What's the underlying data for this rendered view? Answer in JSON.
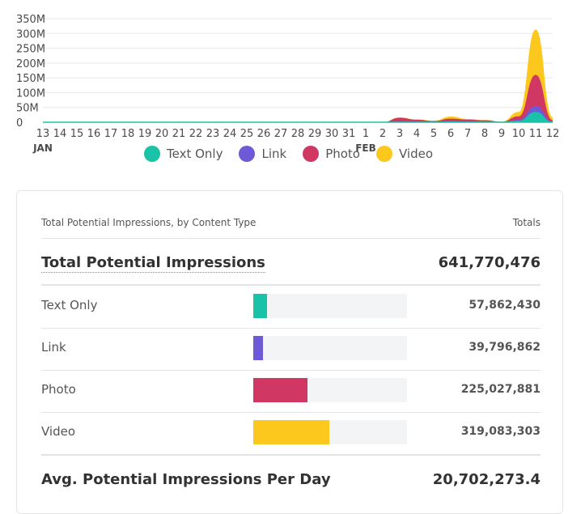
{
  "chart_data": {
    "type": "area",
    "title": "",
    "xlabel": "",
    "ylabel": "",
    "ylim": [
      0,
      350000000
    ],
    "y_ticks": [
      "0",
      "50M",
      "100M",
      "150M",
      "200M",
      "250M",
      "300M",
      "350M"
    ],
    "y_tick_values": [
      0,
      50000000,
      100000000,
      150000000,
      200000000,
      250000000,
      300000000,
      350000000
    ],
    "x": [
      "13",
      "14",
      "15",
      "16",
      "17",
      "18",
      "19",
      "20",
      "21",
      "22",
      "23",
      "24",
      "25",
      "26",
      "27",
      "28",
      "29",
      "30",
      "31",
      "1",
      "2",
      "3",
      "4",
      "5",
      "6",
      "7",
      "8",
      "9",
      "10",
      "11",
      "12"
    ],
    "month_labels": [
      {
        "label": "JAN",
        "at_index": 0
      },
      {
        "label": "FEB",
        "at_index": 19
      }
    ],
    "stacked": true,
    "series": [
      {
        "name": "Text Only",
        "color": "#1ac3a8",
        "values": [
          0,
          0,
          0,
          0,
          0,
          0,
          0,
          0,
          0,
          0,
          0,
          0,
          0,
          0,
          0,
          0,
          0,
          0,
          0,
          0,
          0,
          1000000,
          1000000,
          500000,
          2000000,
          1000000,
          1000000,
          300000,
          5000000,
          35000000,
          1000000
        ]
      },
      {
        "name": "Link",
        "color": "#6e5ad6",
        "values": [
          0,
          0,
          0,
          0,
          0,
          0,
          0,
          0,
          0,
          0,
          0,
          0,
          0,
          0,
          0,
          0,
          0,
          0,
          0,
          0,
          0,
          1000000,
          500000,
          500000,
          2000000,
          1000000,
          500000,
          200000,
          3000000,
          20000000,
          1000000
        ]
      },
      {
        "name": "Photo",
        "color": "#d03863",
        "values": [
          0,
          0,
          0,
          0,
          0,
          0,
          0,
          0,
          0,
          0,
          0,
          0,
          0,
          0,
          0,
          0,
          0,
          0,
          0,
          0,
          0,
          13000000,
          7000000,
          3000000,
          8000000,
          7000000,
          5000000,
          1000000,
          12000000,
          105000000,
          5000000
        ]
      },
      {
        "name": "Video",
        "color": "#fcc81e",
        "values": [
          0,
          0,
          0,
          0,
          0,
          0,
          0,
          0,
          0,
          0,
          0,
          0,
          0,
          0,
          0,
          0,
          0,
          0,
          0,
          0,
          0,
          1000000,
          1000000,
          1000000,
          7000000,
          2000000,
          1000000,
          500000,
          15000000,
          153000000,
          10000000
        ]
      }
    ]
  },
  "legend": {
    "items": [
      {
        "label": "Text Only",
        "color": "#1ac3a8"
      },
      {
        "label": "Link",
        "color": "#6e5ad6"
      },
      {
        "label": "Photo",
        "color": "#d03863"
      },
      {
        "label": "Video",
        "color": "#fcc81e"
      }
    ]
  },
  "table": {
    "header_label": "Total Potential Impressions, by Content Type",
    "header_totals": "Totals",
    "total_label": "Total Potential Impressions",
    "total_value": "641,770,476",
    "rows": [
      {
        "label": "Text Only",
        "value": "57,862,430",
        "share": 0.0902,
        "color": "#1ac3a8"
      },
      {
        "label": "Link",
        "value": "39,796,862",
        "share": 0.062,
        "color": "#6e5ad6"
      },
      {
        "label": "Photo",
        "value": "225,027,881",
        "share": 0.3506,
        "color": "#d03863"
      },
      {
        "label": "Video",
        "value": "319,083,303",
        "share": 0.4972,
        "color": "#fcc81e"
      }
    ],
    "avg_label": "Avg. Potential Impressions Per Day",
    "avg_value": "20,702,273.4"
  }
}
